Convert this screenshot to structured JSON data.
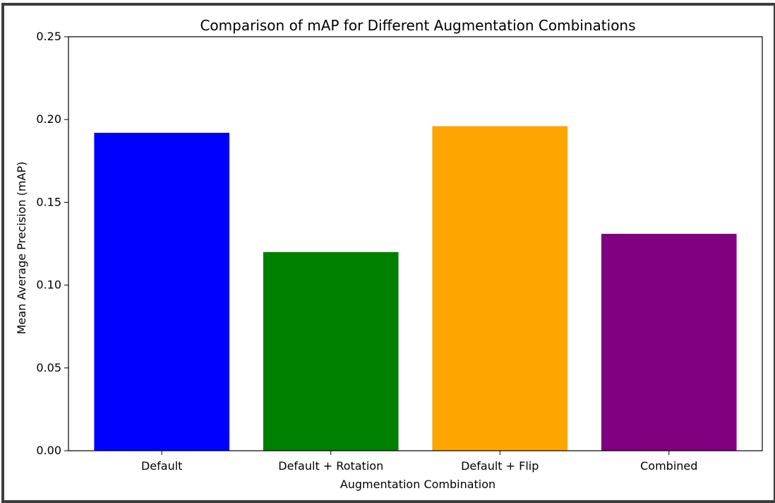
{
  "chart_data": {
    "type": "bar",
    "title": "Comparison of mAP for Different Augmentation Combinations",
    "xlabel": "Augmentation Combination",
    "ylabel": "Mean Average Precision (mAP)",
    "categories": [
      "Default",
      "Default + Rotation",
      "Default + Flip",
      "Combined"
    ],
    "values": [
      0.192,
      0.12,
      0.196,
      0.131
    ],
    "colors": [
      "#0000ff",
      "#008000",
      "#ffa500",
      "#800080"
    ],
    "ylim": [
      0,
      0.25
    ],
    "yticks": [
      0.0,
      0.05,
      0.1,
      0.15,
      0.2,
      0.25
    ],
    "ytick_labels": [
      "0.00",
      "0.05",
      "0.10",
      "0.15",
      "0.20",
      "0.25"
    ],
    "grid": false,
    "legend": "none"
  }
}
